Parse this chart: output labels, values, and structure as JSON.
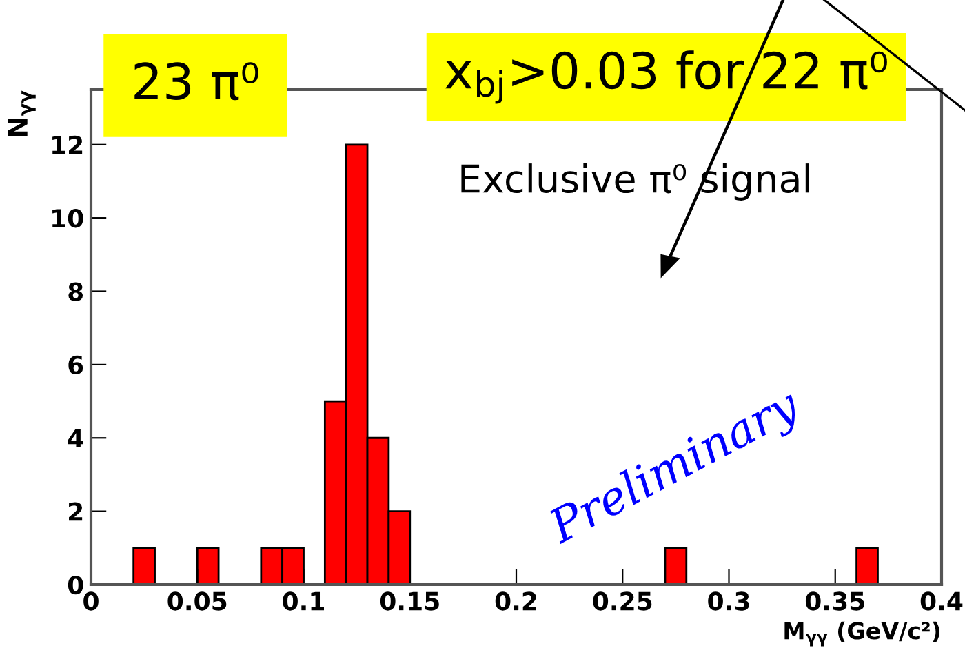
{
  "chart_data": {
    "type": "histogram",
    "bins": [
      0,
      0.01,
      0.02,
      0.03,
      0.04,
      0.05,
      0.06,
      0.07,
      0.08,
      0.09,
      0.1,
      0.11,
      0.12,
      0.13,
      0.14,
      0.15,
      0.16,
      0.17,
      0.18,
      0.19,
      0.2,
      0.21,
      0.22,
      0.23,
      0.24,
      0.25,
      0.26,
      0.27,
      0.28,
      0.29,
      0.3,
      0.31,
      0.32,
      0.33,
      0.34,
      0.35,
      0.36,
      0.37,
      0.38,
      0.39,
      0.4
    ],
    "values": [
      0,
      0,
      1,
      0,
      0,
      1,
      0,
      0,
      1,
      1,
      0,
      5,
      12,
      4,
      2,
      0,
      0,
      0,
      0,
      0,
      0,
      0,
      0,
      0,
      0,
      0,
      0,
      1,
      0,
      0,
      0,
      0,
      0,
      0,
      0,
      0,
      1,
      0,
      0,
      0
    ],
    "color": "#ff0000",
    "xlabel": "M$_{γγ}$ (GeV/c²)",
    "ylabel": "N$_{γγ}$",
    "xlim": [
      0,
      0.4
    ],
    "ylim": [
      0,
      13.5
    ],
    "xticks": [
      0,
      0.05,
      0.1,
      0.15,
      0.2,
      0.25,
      0.3,
      0.35,
      0.4
    ],
    "yticks": [
      0,
      2,
      4,
      6,
      8,
      10,
      12
    ],
    "grid": false,
    "annotations": [
      "23 π⁰",
      "x$_{bj}$>0.03 for 22 π⁰",
      "Exclusive π⁰ signal",
      "Preliminary"
    ]
  }
}
